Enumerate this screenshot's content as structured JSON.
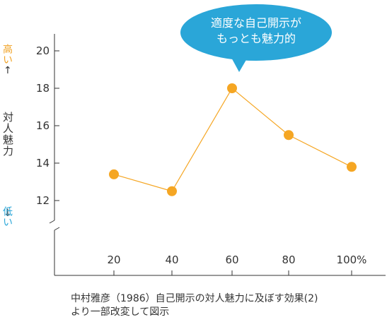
{
  "chart_data": {
    "type": "line",
    "x": [
      "20",
      "40",
      "60",
      "80",
      "100%"
    ],
    "values": [
      13.4,
      12.5,
      18.0,
      15.5,
      13.8
    ],
    "y_ticks": [
      12,
      14,
      16,
      18,
      20
    ],
    "ylim": [
      12,
      20
    ],
    "ylabel": "対人魅力",
    "y_high_label": "高い",
    "y_low_label": "低い",
    "y_high_arrow": "↑",
    "y_low_arrow": "↓",
    "callout": "適度な自己開示が\nもっとも魅力的",
    "grid": false,
    "colors": {
      "line": "#f5a623",
      "marker": "#f5a623",
      "callout": "#2aa6d8",
      "high": "#f0a020",
      "low": "#2aa6d8"
    }
  },
  "caption": {
    "line1": "中村雅彦（1986）自己開示の対人魅力に及ぼす効果(2)",
    "line2": "より一部改変して図示"
  }
}
